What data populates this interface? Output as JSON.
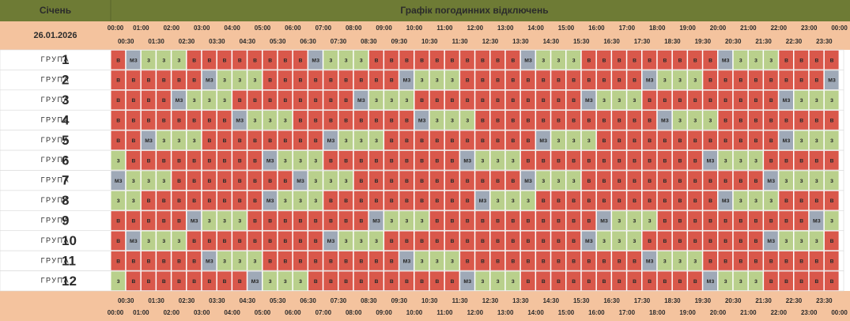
{
  "header": {
    "month": "Січень",
    "title": "Графік погодинних відключень",
    "date": "26.01.2026"
  },
  "colors": {
    "в": "#d9584b",
    "з": "#b9d08c",
    "мз": "#9fa9b7"
  },
  "hours": [
    "00:00",
    "01:00",
    "02:00",
    "03:00",
    "04:00",
    "05:00",
    "06:00",
    "07:00",
    "08:00",
    "09:00",
    "10:00",
    "11:00",
    "12:00",
    "13:00",
    "14:00",
    "15:00",
    "16:00",
    "17:00",
    "18:00",
    "19:00",
    "20:00",
    "21:00",
    "22:00",
    "23:00",
    "00:00"
  ],
  "half_hours": [
    "00:30",
    "01:30",
    "02:30",
    "03:30",
    "04:30",
    "05:30",
    "06:30",
    "07:30",
    "08:30",
    "09:30",
    "10:30",
    "11:30",
    "12:30",
    "13:30",
    "14:30",
    "15:30",
    "16:30",
    "17:30",
    "18:30",
    "19:30",
    "20:30",
    "21:30",
    "22:30",
    "23:30"
  ],
  "groups": [
    {
      "label": "ГРУПА",
      "number": "1",
      "cells": [
        "в",
        "мз",
        "з",
        "з",
        "з",
        "в",
        "в",
        "в",
        "в",
        "в",
        "в",
        "в",
        "в",
        "мз",
        "з",
        "з",
        "з",
        "в",
        "в",
        "в",
        "в",
        "в",
        "в",
        "в",
        "в",
        "в",
        "в",
        "мз",
        "з",
        "з",
        "з",
        "в",
        "в",
        "в",
        "в",
        "в",
        "в",
        "в",
        "в",
        "в",
        "мз",
        "з",
        "з",
        "з",
        "в",
        "в",
        "в",
        "в"
      ]
    },
    {
      "label": "ГРУПА",
      "number": "2",
      "cells": [
        "в",
        "в",
        "в",
        "в",
        "в",
        "в",
        "мз",
        "з",
        "з",
        "з",
        "в",
        "в",
        "в",
        "в",
        "в",
        "в",
        "в",
        "в",
        "в",
        "мз",
        "з",
        "з",
        "з",
        "в",
        "в",
        "в",
        "в",
        "в",
        "в",
        "в",
        "в",
        "в",
        "в",
        "в",
        "в",
        "мз",
        "з",
        "з",
        "з",
        "в",
        "в",
        "в",
        "в",
        "в",
        "в",
        "в",
        "в",
        "мз"
      ]
    },
    {
      "label": "ГРУПА",
      "number": "3",
      "cells": [
        "в",
        "в",
        "в",
        "в",
        "мз",
        "з",
        "з",
        "з",
        "в",
        "в",
        "в",
        "в",
        "в",
        "в",
        "в",
        "в",
        "мз",
        "з",
        "з",
        "з",
        "в",
        "в",
        "в",
        "в",
        "в",
        "в",
        "в",
        "в",
        "в",
        "в",
        "в",
        "мз",
        "з",
        "з",
        "з",
        "в",
        "в",
        "в",
        "в",
        "в",
        "в",
        "в",
        "в",
        "в",
        "мз",
        "з",
        "з",
        "з"
      ]
    },
    {
      "label": "ГРУПА",
      "number": "4",
      "cells": [
        "в",
        "в",
        "в",
        "в",
        "в",
        "в",
        "в",
        "в",
        "мз",
        "з",
        "з",
        "з",
        "в",
        "в",
        "в",
        "в",
        "в",
        "в",
        "в",
        "в",
        "мз",
        "з",
        "з",
        "з",
        "в",
        "в",
        "в",
        "в",
        "в",
        "в",
        "в",
        "в",
        "в",
        "в",
        "в",
        "в",
        "мз",
        "з",
        "з",
        "з",
        "в",
        "в",
        "в",
        "в",
        "в",
        "в",
        "в",
        "в"
      ]
    },
    {
      "label": "ГРУПА",
      "number": "5",
      "cells": [
        "в",
        "в",
        "мз",
        "з",
        "з",
        "з",
        "в",
        "в",
        "в",
        "в",
        "в",
        "в",
        "в",
        "в",
        "мз",
        "з",
        "з",
        "з",
        "в",
        "в",
        "в",
        "в",
        "в",
        "в",
        "в",
        "в",
        "в",
        "в",
        "мз",
        "з",
        "з",
        "з",
        "в",
        "в",
        "в",
        "в",
        "в",
        "в",
        "в",
        "в",
        "в",
        "в",
        "в",
        "в",
        "мз",
        "з",
        "з",
        "з"
      ]
    },
    {
      "label": "ГРУПА",
      "number": "6",
      "cells": [
        "з",
        "в",
        "в",
        "в",
        "в",
        "в",
        "в",
        "в",
        "в",
        "в",
        "мз",
        "з",
        "з",
        "з",
        "в",
        "в",
        "в",
        "в",
        "в",
        "в",
        "в",
        "в",
        "в",
        "мз",
        "з",
        "з",
        "з",
        "в",
        "в",
        "в",
        "в",
        "в",
        "в",
        "в",
        "в",
        "в",
        "в",
        "в",
        "в",
        "мз",
        "з",
        "з",
        "з",
        "в",
        "в",
        "в",
        "в",
        "в"
      ]
    },
    {
      "label": "ГРУПА",
      "number": "7",
      "cells": [
        "мз",
        "з",
        "з",
        "з",
        "в",
        "в",
        "в",
        "в",
        "в",
        "в",
        "в",
        "в",
        "мз",
        "з",
        "з",
        "з",
        "в",
        "в",
        "в",
        "в",
        "в",
        "в",
        "в",
        "в",
        "в",
        "в",
        "в",
        "мз",
        "з",
        "з",
        "з",
        "в",
        "в",
        "в",
        "в",
        "в",
        "в",
        "в",
        "в",
        "в",
        "в",
        "в",
        "в",
        "мз",
        "з",
        "з",
        "з",
        "з"
      ]
    },
    {
      "label": "ГРУПА",
      "number": "8",
      "cells": [
        "з",
        "з",
        "в",
        "в",
        "в",
        "в",
        "в",
        "в",
        "в",
        "в",
        "мз",
        "з",
        "з",
        "з",
        "в",
        "в",
        "в",
        "в",
        "в",
        "в",
        "в",
        "в",
        "в",
        "в",
        "мз",
        "з",
        "з",
        "з",
        "в",
        "в",
        "в",
        "в",
        "в",
        "в",
        "в",
        "в",
        "в",
        "в",
        "в",
        "в",
        "мз",
        "з",
        "з",
        "з",
        "в",
        "в",
        "в",
        "в"
      ]
    },
    {
      "label": "ГРУПА",
      "number": "9",
      "cells": [
        "в",
        "в",
        "в",
        "в",
        "в",
        "мз",
        "з",
        "з",
        "з",
        "в",
        "в",
        "в",
        "в",
        "в",
        "в",
        "в",
        "в",
        "мз",
        "з",
        "з",
        "з",
        "в",
        "в",
        "в",
        "в",
        "в",
        "в",
        "в",
        "в",
        "в",
        "в",
        "в",
        "мз",
        "з",
        "з",
        "з",
        "в",
        "в",
        "в",
        "в",
        "в",
        "в",
        "в",
        "в",
        "в",
        "в",
        "мз",
        "з"
      ]
    },
    {
      "label": "ГРУПА",
      "number": "10",
      "cells": [
        "в",
        "мз",
        "з",
        "з",
        "з",
        "в",
        "в",
        "в",
        "в",
        "в",
        "в",
        "в",
        "в",
        "в",
        "мз",
        "з",
        "з",
        "з",
        "в",
        "в",
        "в",
        "в",
        "в",
        "в",
        "в",
        "в",
        "в",
        "в",
        "в",
        "в",
        "в",
        "мз",
        "з",
        "з",
        "з",
        "в",
        "в",
        "в",
        "в",
        "в",
        "в",
        "в",
        "в",
        "мз",
        "з",
        "з",
        "з",
        "в"
      ]
    },
    {
      "label": "ГРУПА",
      "number": "11",
      "cells": [
        "в",
        "в",
        "в",
        "в",
        "в",
        "в",
        "мз",
        "з",
        "з",
        "з",
        "в",
        "в",
        "в",
        "в",
        "в",
        "в",
        "в",
        "в",
        "в",
        "мз",
        "з",
        "з",
        "з",
        "в",
        "в",
        "в",
        "в",
        "в",
        "в",
        "в",
        "в",
        "в",
        "в",
        "в",
        "в",
        "мз",
        "з",
        "з",
        "з",
        "в",
        "в",
        "в",
        "в",
        "в",
        "в",
        "в",
        "в",
        "в"
      ]
    },
    {
      "label": "ГРУПА",
      "number": "12",
      "cells": [
        "з",
        "в",
        "в",
        "в",
        "в",
        "в",
        "в",
        "в",
        "в",
        "мз",
        "з",
        "з",
        "з",
        "в",
        "в",
        "в",
        "в",
        "в",
        "в",
        "в",
        "в",
        "в",
        "в",
        "мз",
        "з",
        "з",
        "з",
        "в",
        "в",
        "в",
        "в",
        "в",
        "в",
        "в",
        "в",
        "в",
        "в",
        "в",
        "в",
        "мз",
        "з",
        "з",
        "з",
        "в",
        "в",
        "в",
        "в",
        "в"
      ]
    }
  ]
}
